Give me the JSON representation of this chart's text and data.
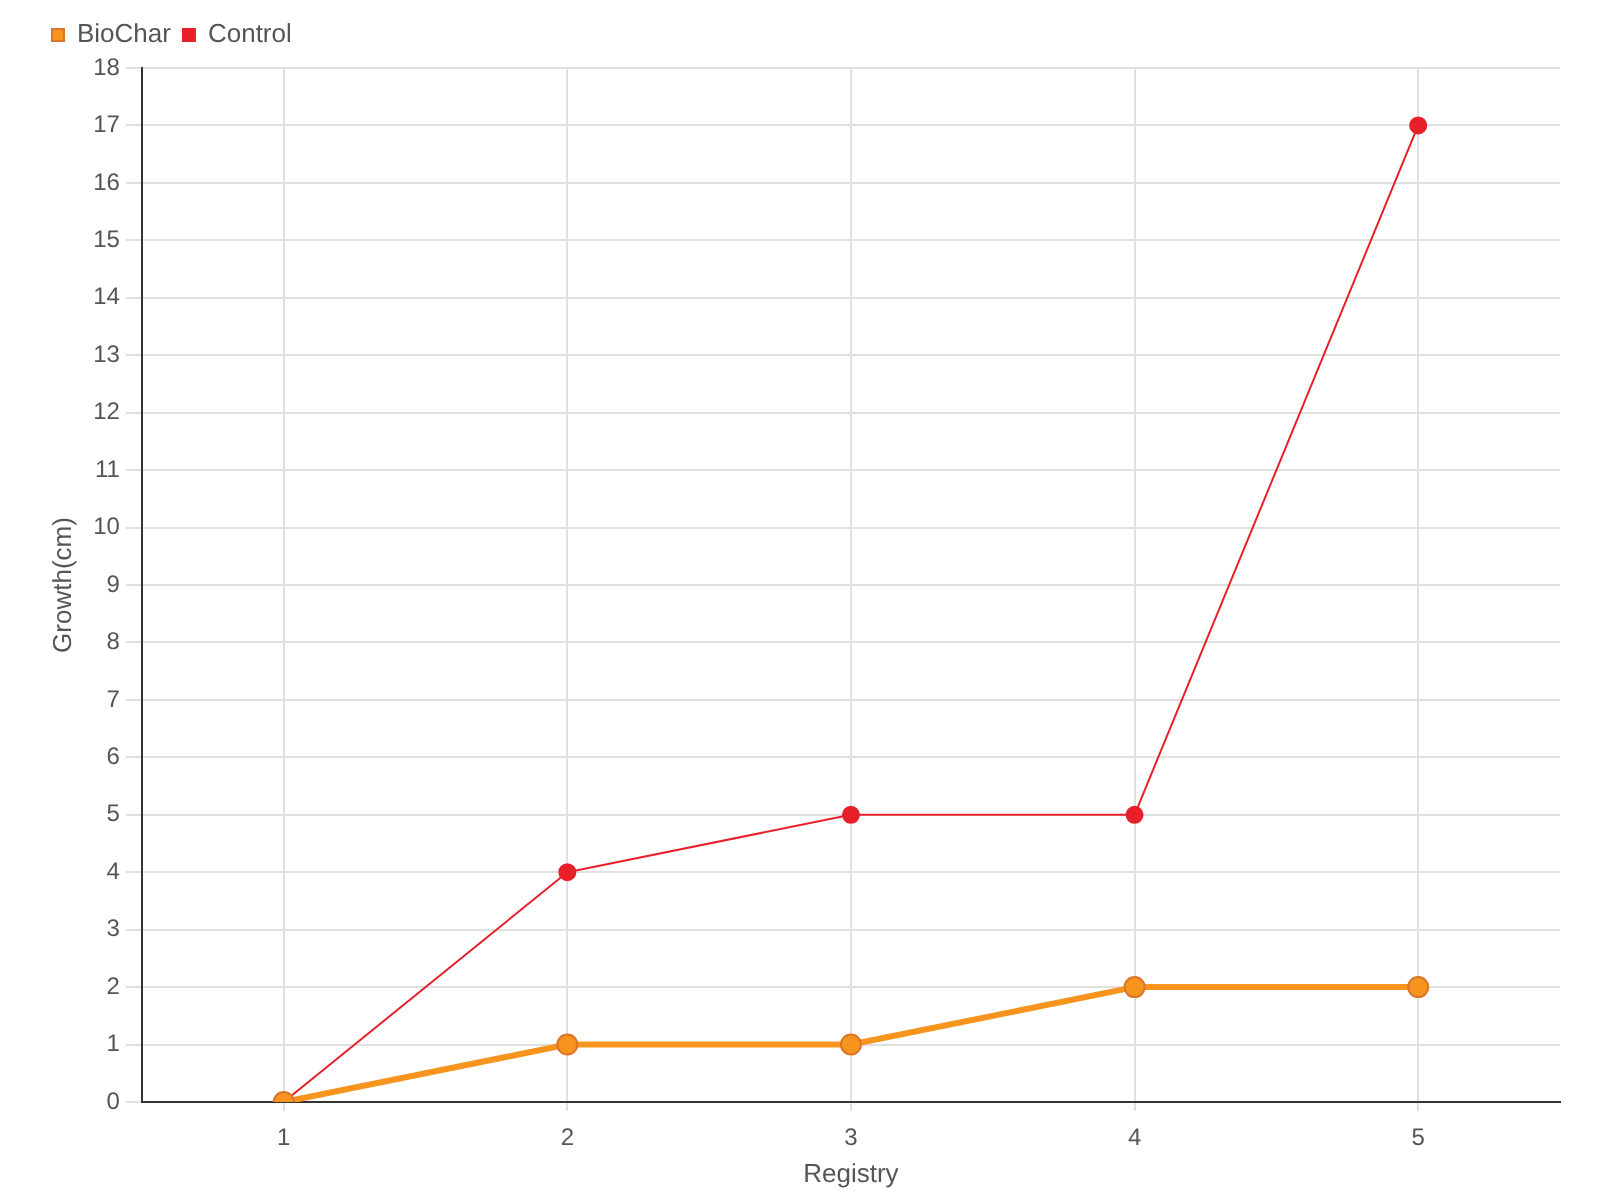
{
  "chart_data": {
    "type": "line",
    "xlabel": "Registry",
    "ylabel": "Growth(cm)",
    "categories": [
      "1",
      "2",
      "3",
      "4",
      "5"
    ],
    "series": [
      {
        "name": "BioChar",
        "color": "#f7941d",
        "values": [
          0,
          1,
          1,
          2,
          2
        ]
      },
      {
        "name": "Control",
        "color": "#e8202a",
        "values": [
          0,
          4,
          5,
          5,
          17
        ]
      }
    ],
    "ylim": [
      0,
      18
    ],
    "yticks": [
      0,
      1,
      2,
      3,
      4,
      5,
      6,
      7,
      8,
      9,
      10,
      11,
      12,
      13,
      14,
      15,
      16,
      17,
      18
    ],
    "grid": true,
    "legend": "top left",
    "marker": "circle",
    "line_style": "solid"
  }
}
